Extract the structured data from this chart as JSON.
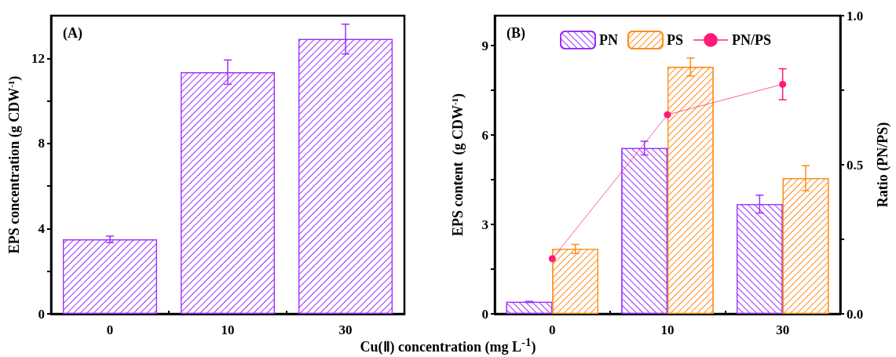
{
  "chart_data": [
    {
      "type": "bar",
      "title": "(A)",
      "xlabel": "Cu(Ⅱ) concentration (mg L$^{-1}$)",
      "ylabel": "EPS concentration (g CDW$^{-1}$)",
      "categories": [
        "0",
        "10",
        "30"
      ],
      "series": [
        {
          "color": "#9b30ff",
          "values": [
            3.5,
            11.35,
            12.9
          ],
          "errors": [
            0.15,
            0.57,
            0.7
          ]
        }
      ],
      "ylim": [
        0,
        14
      ],
      "yticks": [
        0,
        {
          "value": 2,
          "label": null
        },
        4,
        {
          "value": 6,
          "label": null
        },
        8,
        {
          "value": 10,
          "label": null
        },
        12
      ],
      "grid": false,
      "legend": false
    },
    {
      "type": "bar",
      "title": "(B)",
      "ylabel": "EPS content  (g CDW$^{-1}$)",
      "y2label": "Ratio (PN/PS)",
      "categories": [
        "0",
        "10",
        "30"
      ],
      "series": [
        {
          "name": "PN",
          "color": "#9b30ff",
          "values": [
            0.4,
            5.56,
            3.68
          ],
          "errors": [
            0.02,
            0.23,
            0.3
          ]
        },
        {
          "name": "PS",
          "color": "#ff8c1a",
          "values": [
            2.18,
            8.28,
            4.55
          ],
          "errors": [
            0.15,
            0.3,
            0.42
          ]
        },
        {
          "name": "PN/PS",
          "type": "line",
          "axis": "y2",
          "color": "#ff1a75",
          "values": [
            0.185,
            0.668,
            0.77
          ],
          "errors": [
            null,
            null,
            0.052
          ]
        }
      ],
      "ylim": [
        0,
        10
      ],
      "yticks": [
        0,
        {
          "value": 1.5,
          "label": null
        },
        3,
        {
          "value": 4.5,
          "label": null
        },
        6,
        {
          "value": 7.5,
          "label": null
        },
        9
      ],
      "y2lim": [
        0,
        1
      ],
      "y2ticks": [
        {
          "value": 0,
          "label": "0.0"
        },
        {
          "value": 0.25,
          "label": null
        },
        {
          "value": 0.5,
          "label": "0.5"
        },
        {
          "value": 0.75,
          "label": null
        },
        {
          "value": 1,
          "label": "1.0"
        }
      ],
      "grid": false,
      "legend": "top left",
      "marker": "circle"
    }
  ]
}
